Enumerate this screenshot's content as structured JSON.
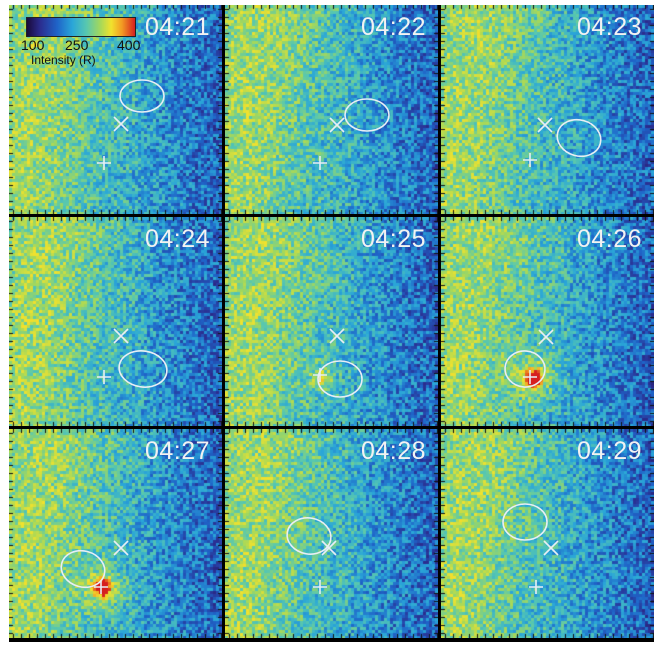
{
  "figure": {
    "colorbar": {
      "ticks": [
        "100",
        "250",
        "400"
      ],
      "label": "Intensity (R)",
      "gradient_colors": [
        "#1a0a3a",
        "#2b2c8e",
        "#1f64c8",
        "#2aa6d8",
        "#57c7b0",
        "#a5d85a",
        "#f1e22d",
        "#f29a23",
        "#d61f1f"
      ]
    },
    "panels": [
      {
        "time": "04:21"
      },
      {
        "time": "04:22"
      },
      {
        "time": "04:23"
      },
      {
        "time": "04:24"
      },
      {
        "time": "04:25"
      },
      {
        "time": "04:26"
      },
      {
        "time": "04:27"
      },
      {
        "time": "04:28"
      },
      {
        "time": "04:29"
      }
    ],
    "marker_color": "#e8eef5"
  }
}
